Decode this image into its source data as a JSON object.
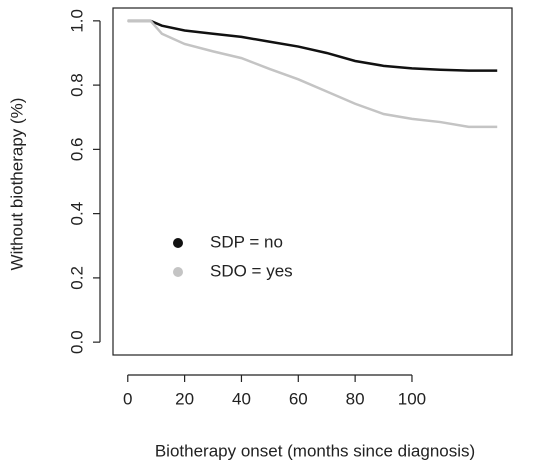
{
  "chart_data": {
    "type": "line",
    "x_label": "Biotherapy onset (months since diagnosis)",
    "y_label": "Without biotherapy (%)",
    "x": [
      0,
      8,
      12,
      20,
      30,
      40,
      50,
      60,
      70,
      80,
      90,
      100,
      110,
      120,
      130
    ],
    "series": [
      {
        "name": "SDP = no",
        "color": "#111111",
        "values": [
          1.0,
          1.0,
          0.985,
          0.97,
          0.96,
          0.95,
          0.935,
          0.92,
          0.9,
          0.875,
          0.86,
          0.852,
          0.848,
          0.845,
          0.845
        ]
      },
      {
        "name": "SDO = yes",
        "color": "#c4c4c4",
        "values": [
          1.0,
          1.0,
          0.96,
          0.928,
          0.905,
          0.884,
          0.85,
          0.818,
          0.78,
          0.742,
          0.71,
          0.695,
          0.685,
          0.67,
          0.67
        ]
      }
    ],
    "xlim": [
      -5.2,
      135.2
    ],
    "ylim": [
      -0.04,
      1.04
    ],
    "xticks": [
      0,
      20,
      40,
      60,
      80,
      100
    ],
    "yticks": [
      {
        "value": 0,
        "label": "0.0"
      },
      0.2,
      0.4,
      0.6,
      0.8,
      {
        "value": 1,
        "label": "1.0"
      }
    ],
    "legend": "left"
  }
}
